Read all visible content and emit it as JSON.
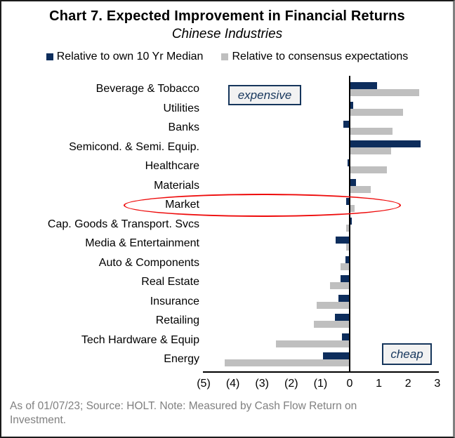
{
  "header": {
    "title": "Chart 7. Expected Improvement in Financial Returns",
    "subtitle": "Chinese Industries"
  },
  "legend": [
    {
      "label": "Relative to own 10 Yr Median",
      "color": "#0d2d5c"
    },
    {
      "label": "Relative to consensus expectations",
      "color": "#bfbfbf"
    }
  ],
  "chart_data": {
    "type": "bar",
    "orientation": "horizontal",
    "title": "Chart 7. Expected Improvement in Financial Returns",
    "subtitle": "Chinese Industries",
    "categories": [
      "Beverage & Tobacco",
      "Utilities",
      "Banks",
      "Semicond. & Semi. Equip.",
      "Healthcare",
      "Materials",
      "Market",
      "Cap. Goods & Transport. Svcs",
      "Media & Entertainment",
      "Auto & Components",
      "Real Estate",
      "Insurance",
      "Retailing",
      "Tech Hardware & Equip",
      "Energy"
    ],
    "series": [
      {
        "name": "Relative to own 10 Yr Median",
        "color": "#0d2d5c",
        "values": [
          0.95,
          0.15,
          -0.2,
          2.45,
          -0.05,
          0.25,
          -0.1,
          0.1,
          -0.45,
          -0.12,
          -0.3,
          -0.37,
          -0.48,
          -0.25,
          -0.9
        ]
      },
      {
        "name": "Relative to consensus expectations",
        "color": "#bfbfbf",
        "values": [
          2.4,
          1.85,
          1.5,
          1.45,
          1.3,
          0.75,
          0.2,
          -0.1,
          -0.1,
          -0.3,
          -0.65,
          -1.1,
          -1.2,
          -2.5,
          -4.25
        ]
      }
    ],
    "xlim": [
      -5,
      3
    ],
    "xticks": [
      -5,
      -4,
      -3,
      -2,
      -1,
      0,
      1,
      2,
      3
    ],
    "xtick_labels": [
      "(5)",
      "(4)",
      "(3)",
      "(2)",
      "(1)",
      "0",
      "1",
      "2",
      "3"
    ],
    "grid": false,
    "legend_position": "top",
    "annotations": [
      {
        "text": "expensive",
        "position": "top-left-of-plot"
      },
      {
        "text": "cheap",
        "position": "bottom-right-of-plot"
      }
    ],
    "highlight": {
      "category": "Market",
      "shape": "red-ellipse",
      "color": "#ee0b0b"
    }
  },
  "footer": {
    "text": "As of 01/07/23; Source: HOLT. Note: Measured by Cash Flow Return on Investment."
  }
}
